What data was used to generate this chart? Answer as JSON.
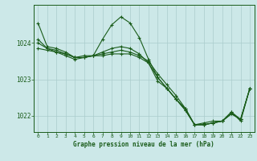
{
  "background_color": "#cce8e8",
  "plot_bg_color": "#cce8e8",
  "line_color": "#1a5c1a",
  "marker": "+",
  "title": "Graphe pression niveau de la mer (hPa)",
  "xlim": [
    -0.5,
    23.5
  ],
  "ylim": [
    1021.55,
    1025.05
  ],
  "yticks": [
    1022,
    1023,
    1024
  ],
  "xticks": [
    0,
    1,
    2,
    3,
    4,
    5,
    6,
    7,
    8,
    9,
    10,
    11,
    12,
    13,
    14,
    15,
    16,
    17,
    18,
    19,
    20,
    21,
    22,
    23
  ],
  "grid_color": "#aacccc",
  "series": [
    [
      1024.55,
      1023.9,
      1023.85,
      1023.75,
      1023.6,
      1023.65,
      1023.65,
      1024.1,
      1024.5,
      1024.72,
      1024.55,
      1024.15,
      1023.55,
      1023.05,
      1022.75,
      1022.45,
      1022.2,
      1021.75,
      1021.8,
      1021.85,
      1021.85,
      1022.1,
      1021.85,
      1022.75
    ],
    [
      1024.1,
      1023.85,
      1023.75,
      1023.7,
      1023.6,
      1023.6,
      1023.65,
      1023.7,
      1023.75,
      1023.8,
      1023.75,
      1023.65,
      1023.5,
      1023.15,
      1022.85,
      1022.55,
      1022.2,
      1021.75,
      1021.75,
      1021.8,
      1021.85,
      1022.1,
      1021.9,
      1022.75
    ],
    [
      1023.85,
      1023.8,
      1023.75,
      1023.65,
      1023.55,
      1023.6,
      1023.65,
      1023.65,
      1023.7,
      1023.7,
      1023.7,
      1023.6,
      1023.45,
      1023.05,
      1022.75,
      1022.45,
      1022.15,
      1021.75,
      1021.75,
      1021.8,
      1021.85,
      1022.05,
      1021.9,
      1022.75
    ],
    [
      1024.0,
      1023.85,
      1023.8,
      1023.7,
      1023.6,
      1023.6,
      1023.65,
      1023.75,
      1023.85,
      1023.9,
      1023.85,
      1023.7,
      1023.45,
      1022.95,
      1022.75,
      1022.45,
      1022.15,
      1021.75,
      1021.75,
      1021.8,
      1021.85,
      1022.05,
      1021.9,
      1022.75
    ]
  ]
}
